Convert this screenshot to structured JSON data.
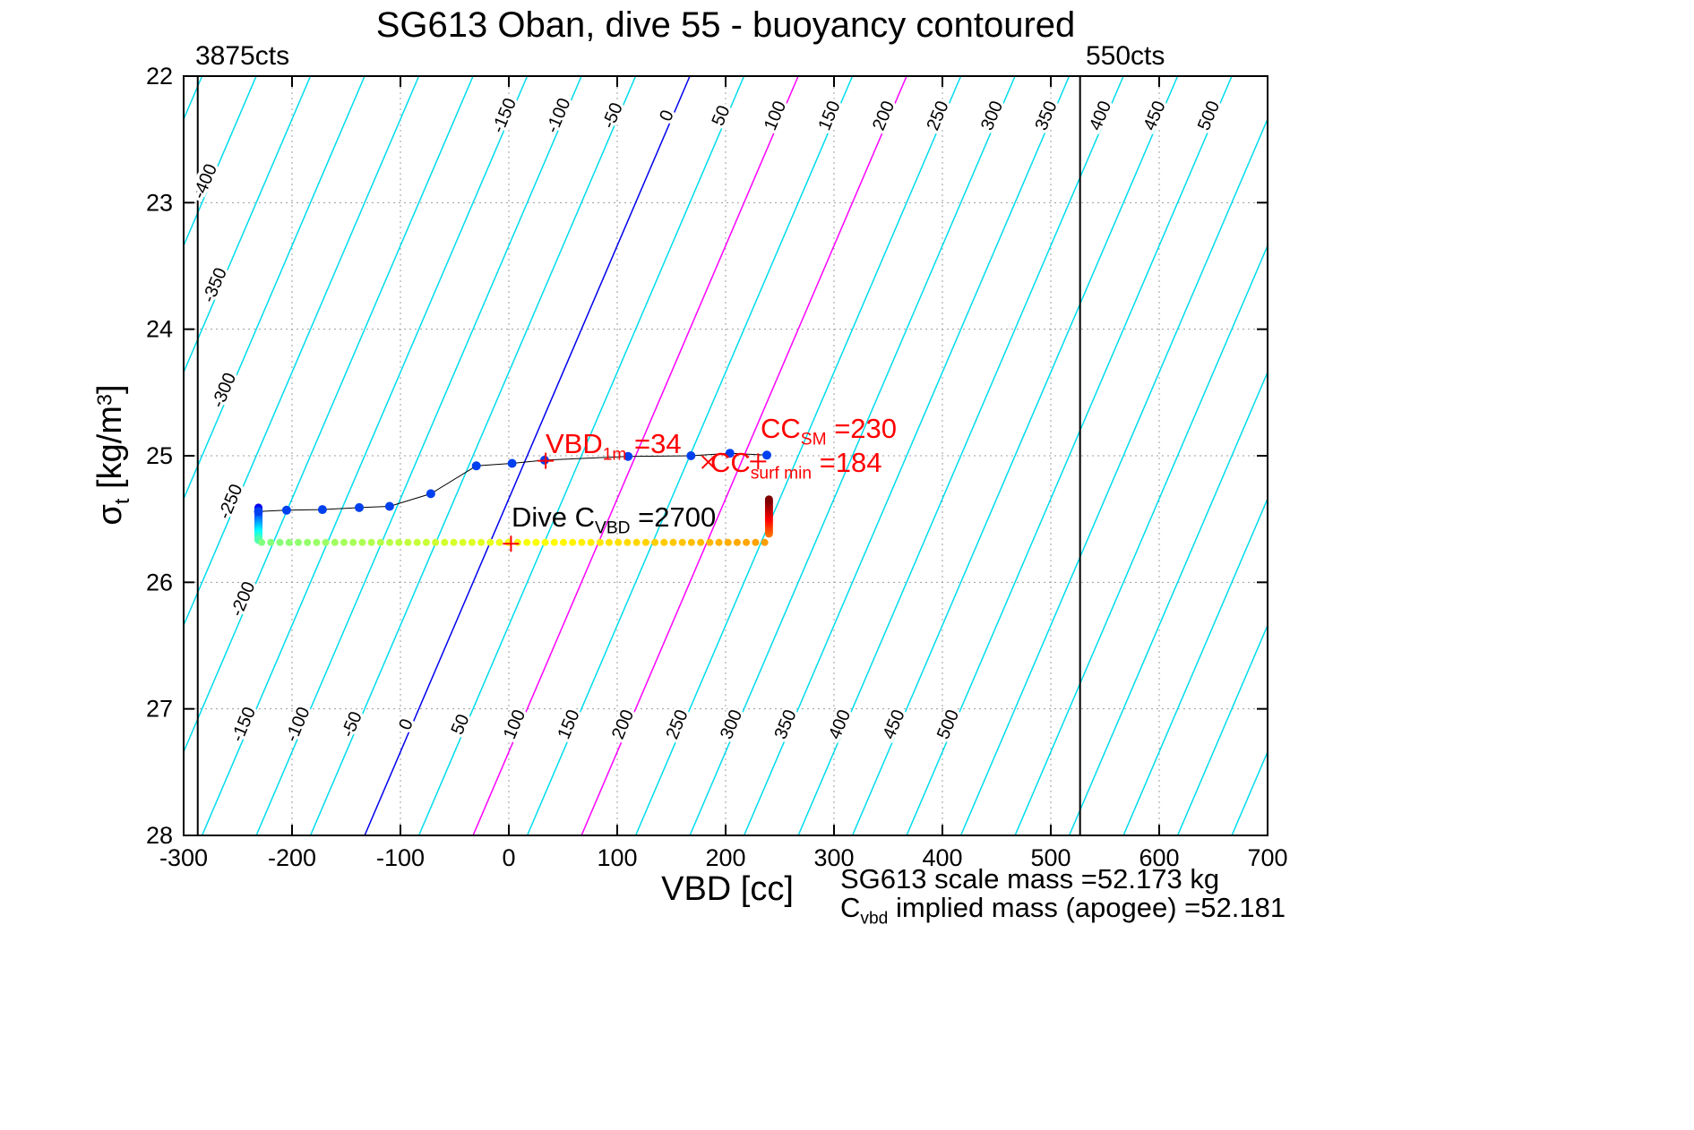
{
  "title": "SG613 Oban, dive 55 - buoyancy contoured",
  "corner_labels": {
    "left": "3875cts",
    "right": "550cts"
  },
  "axes": {
    "xlabel": "VBD [cc]",
    "ylabel": {
      "sym": "σ",
      "sub": "t",
      "mid": " [kg/m",
      "sup": "3",
      "end": "]"
    },
    "x_ticks": [
      -300,
      -200,
      -100,
      0,
      100,
      200,
      300,
      400,
      500,
      600,
      700
    ],
    "y_ticks": [
      22,
      23,
      24,
      25,
      26,
      27,
      28
    ]
  },
  "annotations": {
    "vbd_1m": {
      "pre": "VBD",
      "sub": "1m",
      "post": " =34",
      "color": "#ff0000"
    },
    "cc_sm": {
      "pre": "CC",
      "sub": "SM",
      "post": " =230",
      "color": "#ff0000"
    },
    "cc_surf_min": {
      "pre": "CC",
      "sub": "surf min",
      "post": " =184",
      "color": "#ff0000"
    },
    "dive_c": {
      "pre": "Dive C",
      "sub": "VBD",
      "post": " =2700",
      "color": "#000000"
    }
  },
  "footer": {
    "scale_mass": "SG613 scale mass =52.173 kg",
    "implied_mass": {
      "pre": "C",
      "sub": "vbd",
      "post": " implied mass (apogee) =52.181"
    }
  },
  "chart_data": {
    "type": "scatter",
    "title": "SG613 Oban, dive 55 - buoyancy contoured",
    "xlabel": "VBD [cc]",
    "ylabel": "σ_t [kg/m³]",
    "xlim": [
      -300,
      700
    ],
    "ylim": [
      22,
      28
    ],
    "y_inverted_note": "sigma-t increases downward",
    "grid": true,
    "x_ticks": [
      -300,
      -200,
      -100,
      0,
      100,
      200,
      300,
      400,
      500,
      600,
      700
    ],
    "y_ticks": [
      22,
      23,
      24,
      25,
      26,
      27,
      28
    ],
    "vlines": [
      {
        "x": -287,
        "color": "#000000",
        "label": "3875cts"
      },
      {
        "x": 527,
        "color": "#000000",
        "label": "550cts"
      }
    ],
    "contours": {
      "values": [
        -450,
        -400,
        -350,
        -300,
        -250,
        -200,
        -150,
        -100,
        -50,
        0,
        50,
        100,
        150,
        200,
        250,
        300,
        350,
        400,
        450,
        500,
        550,
        600,
        650,
        700,
        750,
        800
      ],
      "x_intercept_at_top": 167,
      "slope_cc_per_sigma": -50,
      "default_color": "#00dcec",
      "special_colors": {
        "0": "#0000ee",
        "100": "#ff00ff",
        "200": "#ff00ff"
      },
      "labels": {
        "top": {
          "values": [
            -150,
            -100,
            -50,
            0,
            50,
            100,
            150,
            200,
            250,
            300,
            350,
            400,
            450,
            500
          ],
          "sigma": 22.33
        },
        "bottom": {
          "values": [
            -150,
            -100,
            -50,
            0,
            50,
            100,
            150,
            200,
            250,
            300,
            350,
            400,
            450,
            500
          ],
          "sigma": 27.14
        },
        "left": [
          {
            "v": -400,
            "sigma": 22.85
          },
          {
            "v": -350,
            "sigma": 23.67
          },
          {
            "v": -300,
            "sigma": 24.5
          },
          {
            "v": -250,
            "sigma": 25.38
          },
          {
            "v": -200,
            "sigma": 26.15
          }
        ]
      }
    },
    "climb": {
      "x": [
        -231,
        -205,
        -172,
        -138,
        -110,
        -72,
        -30,
        3,
        33,
        110,
        168,
        204,
        238
      ],
      "sigma": [
        25.44,
        25.43,
        25.425,
        25.41,
        25.4,
        25.3,
        25.08,
        25.06,
        25.035,
        25.005,
        25.0,
        24.98,
        24.995
      ],
      "line_color": "#000000",
      "dot_color": "#0040ee",
      "dot_r": 5
    },
    "track_segments": [
      {
        "name": "descent-left",
        "x_const": -231,
        "sigma_from": 25.41,
        "sigma_to": 25.665,
        "n": 24,
        "t_from": 0.1,
        "t_to": 0.45,
        "r": 4.5
      },
      {
        "name": "dive-bottom",
        "sigma_const": 25.685,
        "x_from": -228,
        "x_to": 236,
        "n": 56,
        "t_from": 0.5,
        "t_to": 0.72,
        "r": 4
      },
      {
        "name": "apogee-right",
        "x_const": 240,
        "sigma_from": 25.615,
        "sigma_to": 25.345,
        "n": 24,
        "t_from": 0.76,
        "t_to": 1.0,
        "r": 4.5
      }
    ],
    "markers": [
      {
        "shape": "plus",
        "x": 34,
        "sigma": 25.04,
        "color": "#ff0000"
      },
      {
        "shape": "cross",
        "x": 184,
        "sigma": 25.05,
        "color": "#ff0000"
      },
      {
        "shape": "plus",
        "x": 230,
        "sigma": 25.045,
        "color": "#ff0000"
      },
      {
        "shape": "plus",
        "x": 2,
        "sigma": 25.695,
        "color": "#ff0000"
      }
    ],
    "key_values": {
      "VBD_1m": 34,
      "CC_SM": 230,
      "CC_surf_min": 184,
      "Dive_C_VBD": 2700,
      "scale_mass_kg": 52.173,
      "implied_mass_apogee_kg": 52.181
    }
  }
}
